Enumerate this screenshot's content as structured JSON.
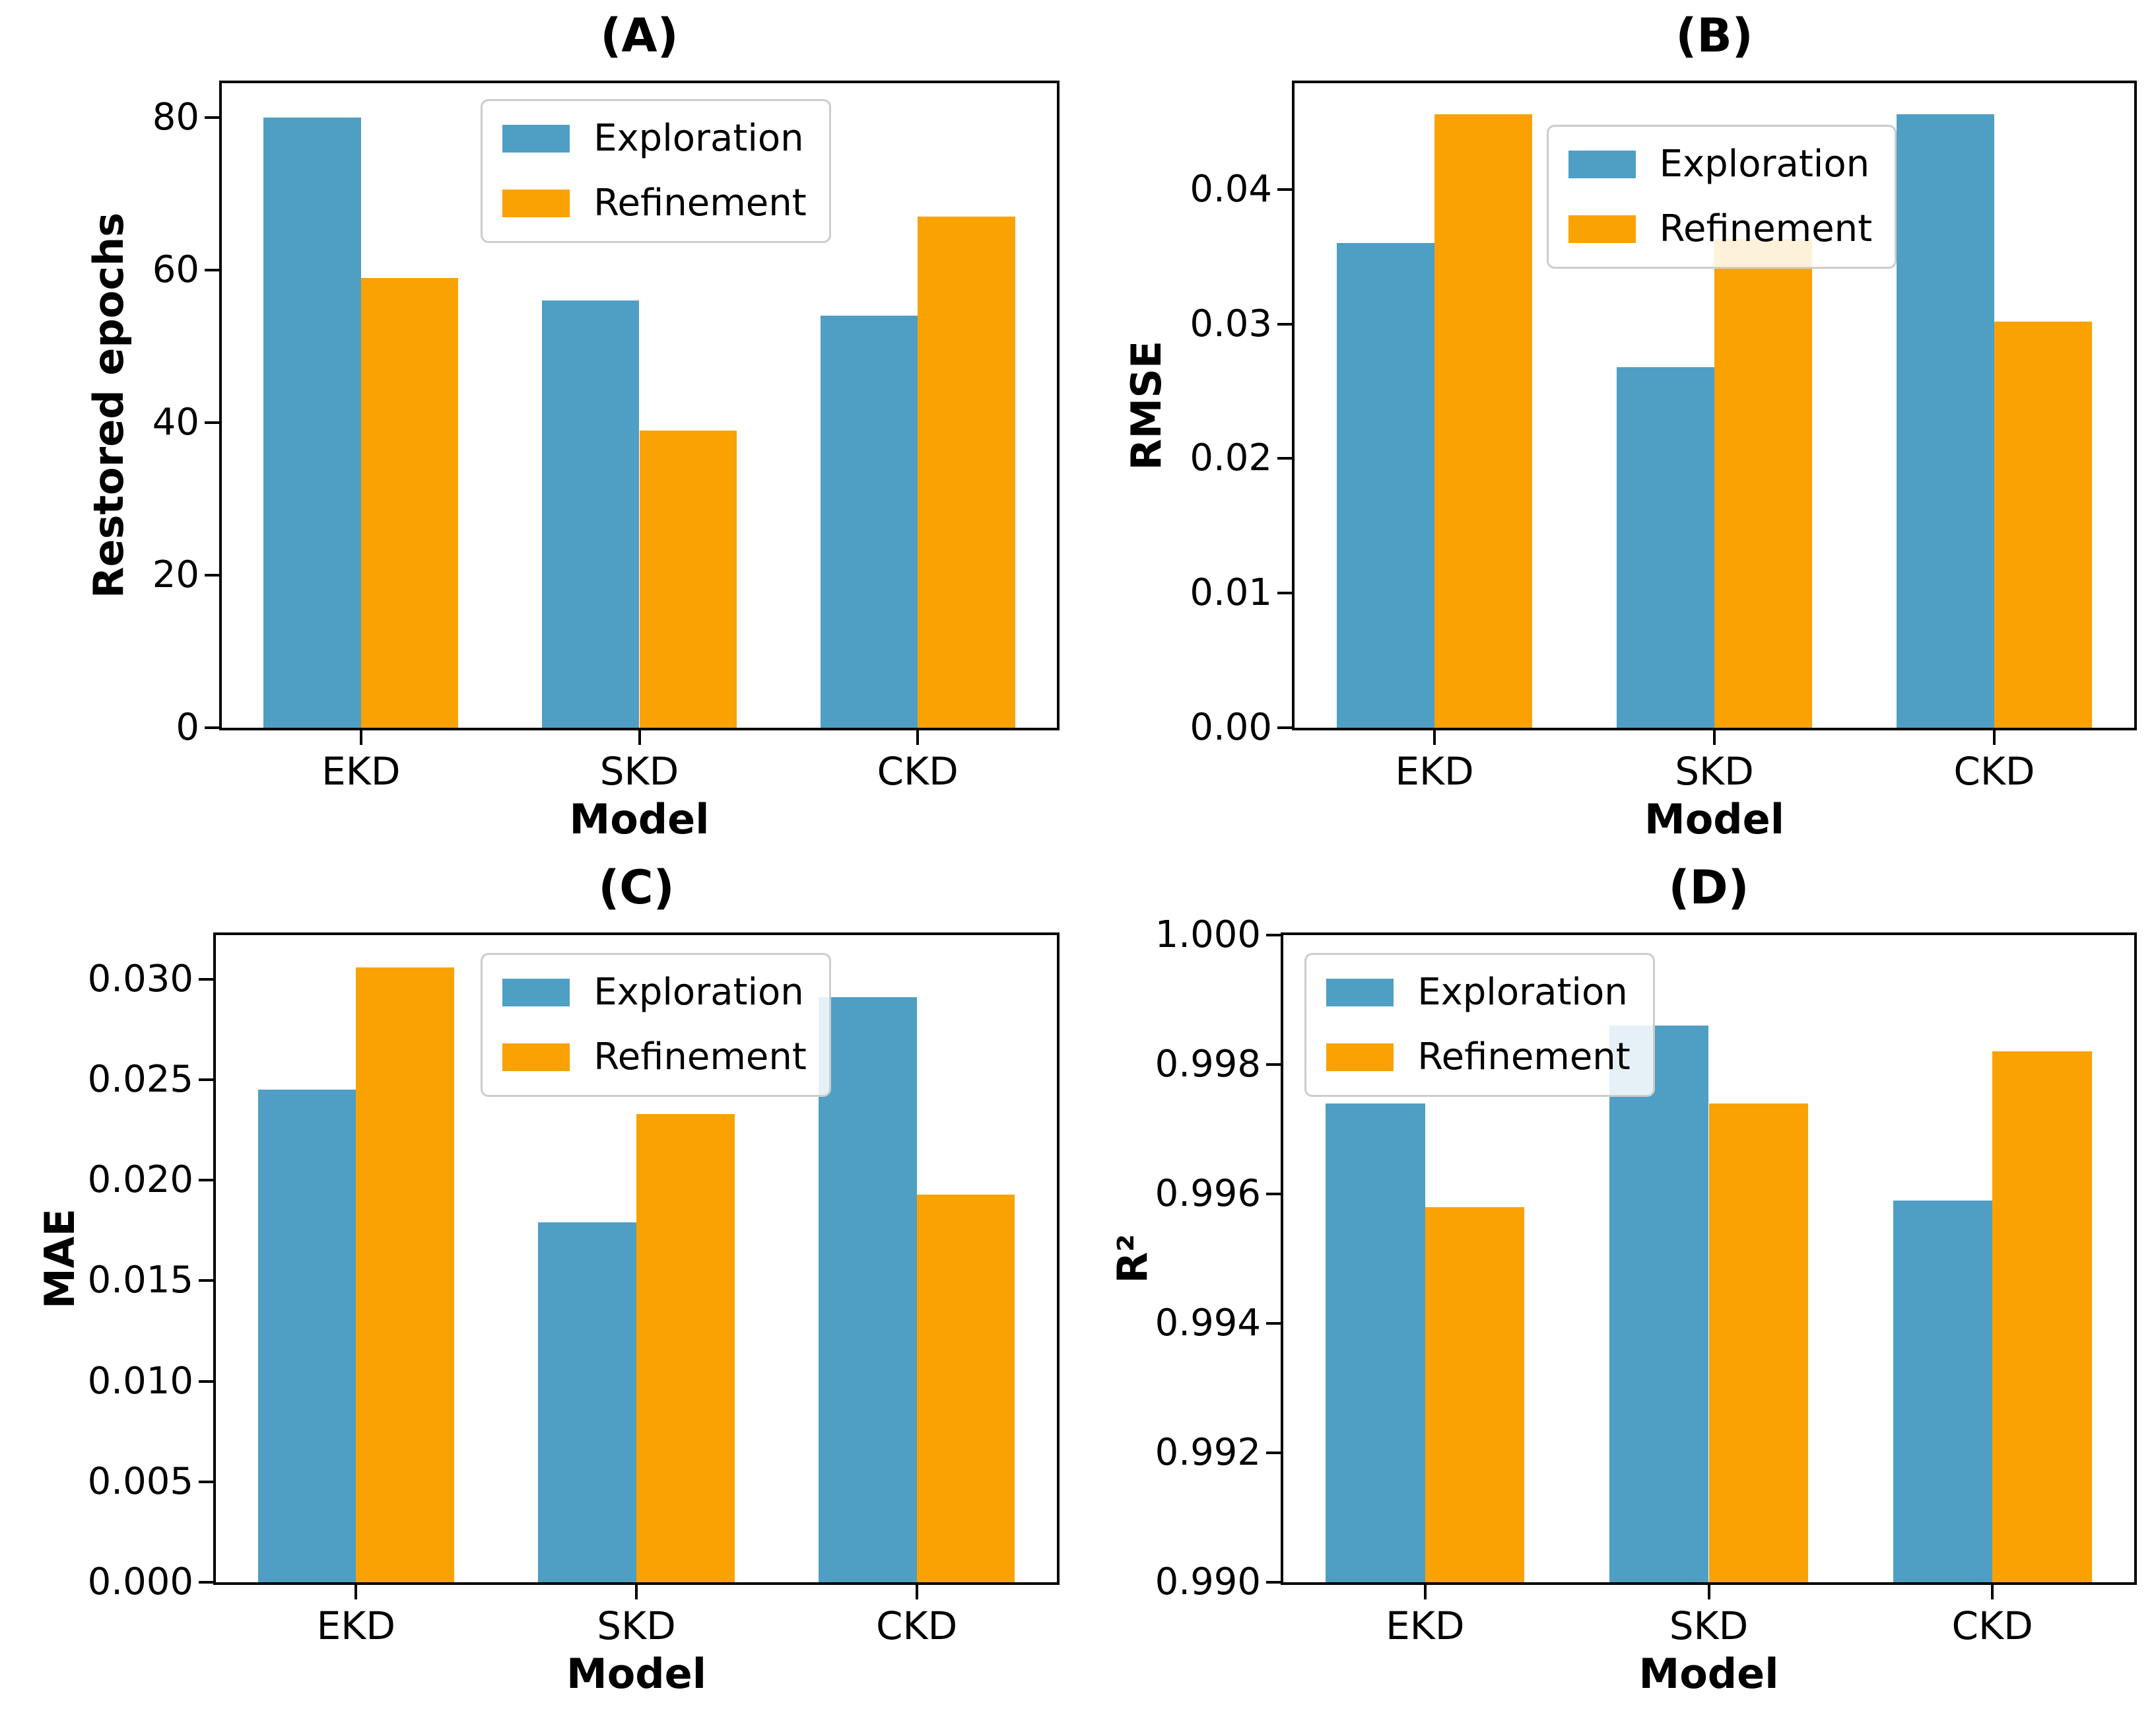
{
  "figure": {
    "background": "#ffffff",
    "series_colors": {
      "exploration": "#4F9EC4",
      "refinement": "#F9A202"
    }
  },
  "chart_data": [
    {
      "id": "A",
      "type": "bar",
      "title": "(A)",
      "xlabel": "Model",
      "ylabel": "Restored epochs",
      "categories": [
        "EKD",
        "SKD",
        "CKD"
      ],
      "series": [
        {
          "name": "Exploration",
          "color": "#4F9EC4",
          "values": [
            80,
            56,
            54
          ]
        },
        {
          "name": "Refinement",
          "color": "#F9A202",
          "values": [
            59,
            39,
            67
          ]
        }
      ],
      "ylim": [
        0,
        84.5
      ],
      "yticks": [
        {
          "v": 0,
          "label": "0"
        },
        {
          "v": 20,
          "label": "20"
        },
        {
          "v": 40,
          "label": "40"
        },
        {
          "v": 60,
          "label": "60"
        },
        {
          "v": 80,
          "label": "80"
        }
      ],
      "grid": false,
      "legend_position": "upper-center"
    },
    {
      "id": "B",
      "type": "bar",
      "title": "(B)",
      "xlabel": "Model",
      "ylabel": "RMSE",
      "categories": [
        "EKD",
        "SKD",
        "CKD"
      ],
      "series": [
        {
          "name": "Exploration",
          "color": "#4F9EC4",
          "values": [
            0.036,
            0.0268,
            0.0456
          ]
        },
        {
          "name": "Refinement",
          "color": "#F9A202",
          "values": [
            0.0456,
            0.0363,
            0.0302
          ]
        }
      ],
      "ylim": [
        0,
        0.0479
      ],
      "yticks": [
        {
          "v": 0,
          "label": "0.00"
        },
        {
          "v": 0.01,
          "label": "0.01"
        },
        {
          "v": 0.02,
          "label": "0.02"
        },
        {
          "v": 0.03,
          "label": "0.03"
        },
        {
          "v": 0.04,
          "label": "0.04"
        }
      ],
      "grid": false,
      "legend_position": "upper-center"
    },
    {
      "id": "C",
      "type": "bar",
      "title": "(C)",
      "xlabel": "Model",
      "ylabel": "MAE",
      "categories": [
        "EKD",
        "SKD",
        "CKD"
      ],
      "series": [
        {
          "name": "Exploration",
          "color": "#4F9EC4",
          "values": [
            0.0245,
            0.0179,
            0.0291
          ]
        },
        {
          "name": "Refinement",
          "color": "#F9A202",
          "values": [
            0.0306,
            0.0233,
            0.0193
          ]
        }
      ],
      "ylim": [
        0,
        0.0322
      ],
      "yticks": [
        {
          "v": 0,
          "label": "0.000"
        },
        {
          "v": 0.005,
          "label": "0.005"
        },
        {
          "v": 0.01,
          "label": "0.010"
        },
        {
          "v": 0.015,
          "label": "0.015"
        },
        {
          "v": 0.02,
          "label": "0.020"
        },
        {
          "v": 0.025,
          "label": "0.025"
        },
        {
          "v": 0.03,
          "label": "0.030"
        }
      ],
      "grid": false,
      "legend_position": "upper-center"
    },
    {
      "id": "D",
      "type": "bar",
      "title": "(D)",
      "xlabel": "Model",
      "ylabel": "R²",
      "categories": [
        "EKD",
        "SKD",
        "CKD"
      ],
      "series": [
        {
          "name": "Exploration",
          "color": "#4F9EC4",
          "values": [
            0.9974,
            0.9986,
            0.9959
          ]
        },
        {
          "name": "Refinement",
          "color": "#F9A202",
          "values": [
            0.9958,
            0.9974,
            0.9982
          ]
        }
      ],
      "ylim": [
        0.99,
        1.0
      ],
      "yticks": [
        {
          "v": 0.99,
          "label": "0.990"
        },
        {
          "v": 0.992,
          "label": "0.992"
        },
        {
          "v": 0.994,
          "label": "0.994"
        },
        {
          "v": 0.996,
          "label": "0.996"
        },
        {
          "v": 0.998,
          "label": "0.998"
        },
        {
          "v": 1.0,
          "label": "1.000"
        }
      ],
      "grid": false,
      "legend_position": "upper-left"
    }
  ]
}
